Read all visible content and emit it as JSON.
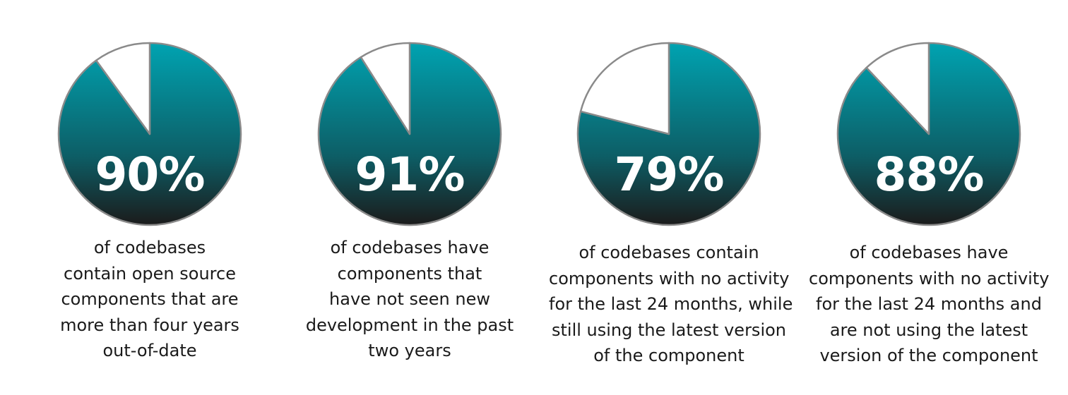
{
  "colors": {
    "slice_top": "#00a3b1",
    "slice_bottom": "#1b1b1b",
    "remainder_fill": "#ffffff",
    "outline": "#8a8a8a",
    "percent_text": "#ffffff",
    "caption_text": "#1a1a1a"
  },
  "chart_data": [
    {
      "type": "pie",
      "title": "90%",
      "slices": [
        {
          "label": "",
          "value": 90
        },
        {
          "label": "",
          "value": 10
        }
      ],
      "caption_lines": [
        "of codebases",
        "contain open source",
        "components that are",
        "more than four years",
        "out-of-date"
      ]
    },
    {
      "type": "pie",
      "title": "91%",
      "slices": [
        {
          "label": "",
          "value": 91
        },
        {
          "label": "",
          "value": 9
        }
      ],
      "caption_lines": [
        "of codebases have",
        "components that",
        "have not seen new",
        "development in the past",
        "two years"
      ]
    },
    {
      "type": "pie",
      "title": "79%",
      "slices": [
        {
          "label": "",
          "value": 79
        },
        {
          "label": "",
          "value": 21
        }
      ],
      "caption_lines": [
        "of codebases contain",
        "components with no activity",
        "for the last 24 months, while",
        "still using the latest version",
        "of the component"
      ]
    },
    {
      "type": "pie",
      "title": "88%",
      "slices": [
        {
          "label": "",
          "value": 88
        },
        {
          "label": "",
          "value": 12
        }
      ],
      "caption_lines": [
        "of codebases have",
        "components with no activity",
        "for the last 24 months and",
        "are not using the latest",
        "version of the component"
      ]
    }
  ]
}
